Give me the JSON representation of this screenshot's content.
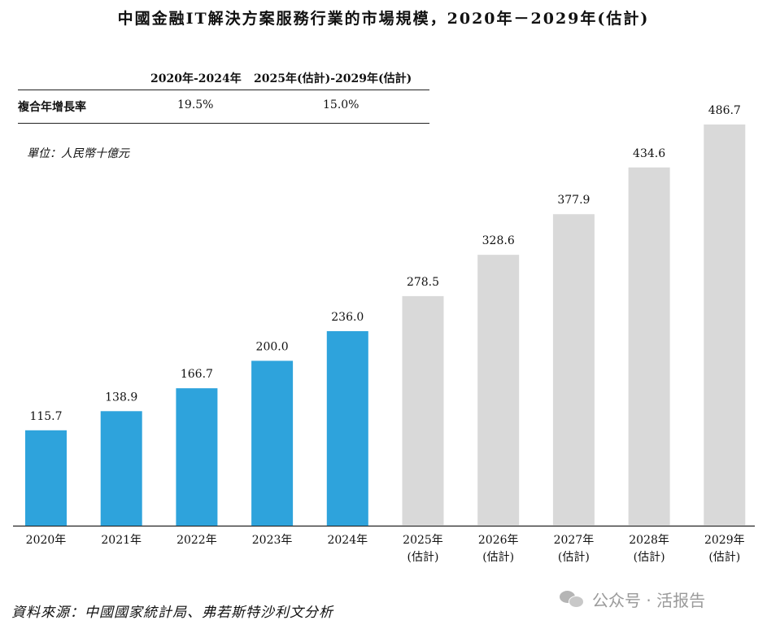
{
  "title": "中國金融IT解決方案服務行業的市場規模，2020年－2029年(估計)",
  "cagr_table": {
    "col1_header": "2020年-2024年",
    "col2_header": "2025年(估計)-2029年(估計)",
    "row_label": "複合年增長率",
    "col1_value": "19.5%",
    "col2_value": "15.0%"
  },
  "unit_label": "單位：人民幣十億元",
  "source": "資料來源：中國國家統計局、弗若斯特沙利文分析",
  "watermark": "公众号 · 活报告",
  "colors": {
    "actual": "#2ea3dc",
    "estimate": "#d9d9d9",
    "axis": "#222222"
  },
  "chart_data": {
    "type": "bar",
    "categories": [
      "2020年",
      "2021年",
      "2022年",
      "2023年",
      "2024年",
      "2025年\n(估計)",
      "2026年\n(估計)",
      "2027年\n(估計)",
      "2028年\n(估計)",
      "2029年\n(估計)"
    ],
    "values": [
      115.7,
      138.9,
      166.7,
      200.0,
      236.0,
      278.5,
      328.6,
      377.9,
      434.6,
      486.7
    ],
    "value_labels": [
      "115.7",
      "138.9",
      "166.7",
      "200.0",
      "236.0",
      "278.5",
      "328.6",
      "377.9",
      "434.6",
      "486.7"
    ],
    "estimated": [
      false,
      false,
      false,
      false,
      false,
      true,
      true,
      true,
      true,
      true
    ],
    "ylim": [
      0,
      500
    ],
    "grid": false,
    "xlabel": "",
    "ylabel": ""
  }
}
